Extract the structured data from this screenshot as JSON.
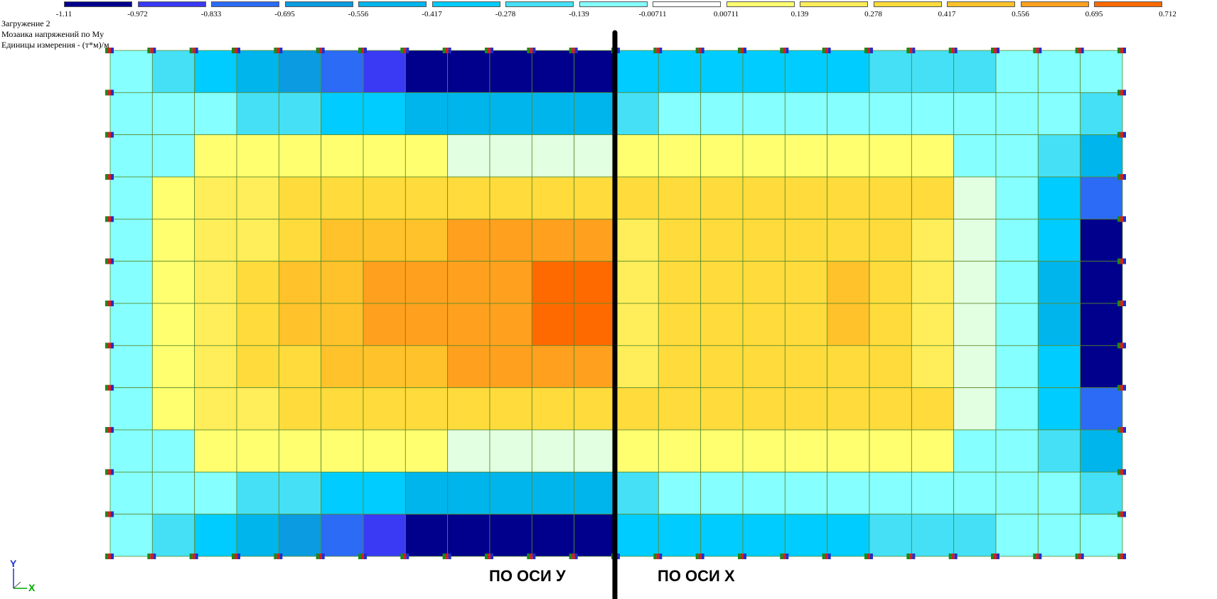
{
  "legend": {
    "ticks": [
      "-1.11",
      "-0.972",
      "-0.833",
      "-0.695",
      "-0.556",
      "-0.417",
      "-0.278",
      "-0.139",
      "-0.00711",
      "0.00711",
      "0.139",
      "0.278",
      "0.417",
      "0.556",
      "0.695",
      "0.712"
    ],
    "colors": [
      "#00008c",
      "#3a3af5",
      "#2b6bf5",
      "#0a9be0",
      "#00b4ec",
      "#00ccff",
      "#45e0f5",
      "#85ffff",
      "#ffffff",
      "#ffff70",
      "#ffed5a",
      "#ffdb3c",
      "#ffc22a",
      "#ffa01e",
      "#ff6a00"
    ]
  },
  "info": {
    "line1": "Загружение 2",
    "line2": "Мозаика напряжений по My",
    "line3": "Единицы измерения - (т*м)/м"
  },
  "labels": {
    "left": "ПО ОСИ У",
    "right": "ПО ОСИ Х"
  },
  "axes": {
    "y": "Y",
    "x": "X"
  },
  "colors": {
    "A": "#85ffff",
    "B": "#45e0f5",
    "C": "#00ccff",
    "D": "#00b4ec",
    "E": "#0a9be0",
    "F": "#2b6bf5",
    "G": "#3a3af5",
    "H": "#00008c",
    "W": "#e2ffe2",
    "Y": "#ffff70",
    "L": "#ffed5a",
    "M": "#ffdb3c",
    "N": "#ffc22a",
    "O": "#ffa01e",
    "P": "#ff6a00"
  },
  "grid_rows": [
    "ABCDEFGHHHHHCCCCCCBBBAAA",
    "AAABBCCDDDDDBAAAAAAAAAAB",
    "AAYYYYYYWWWWYYYYYYYYAABD",
    "AYLLMMMMMMMMMMMMMMMMWACF",
    "AYLLMNNNOOOOLMMMMMMLWACH",
    "AYLMNNOOOOPPLMMMMNMLWADH",
    "AYLMNNOOOOPPLMMMMNMLWADH",
    "AYLMMNNNOOOOLMMMMMMLWACH",
    "AYLLMMMMMMMMMMMMMMMMWACF",
    "AAYYYYYYWWWWYYYYYYYYAABD",
    "AAABBCCDDDDDBAAAAAAAAAAB",
    "ABCDEFGHHHHHCCCCCCBBBAAA"
  ]
}
